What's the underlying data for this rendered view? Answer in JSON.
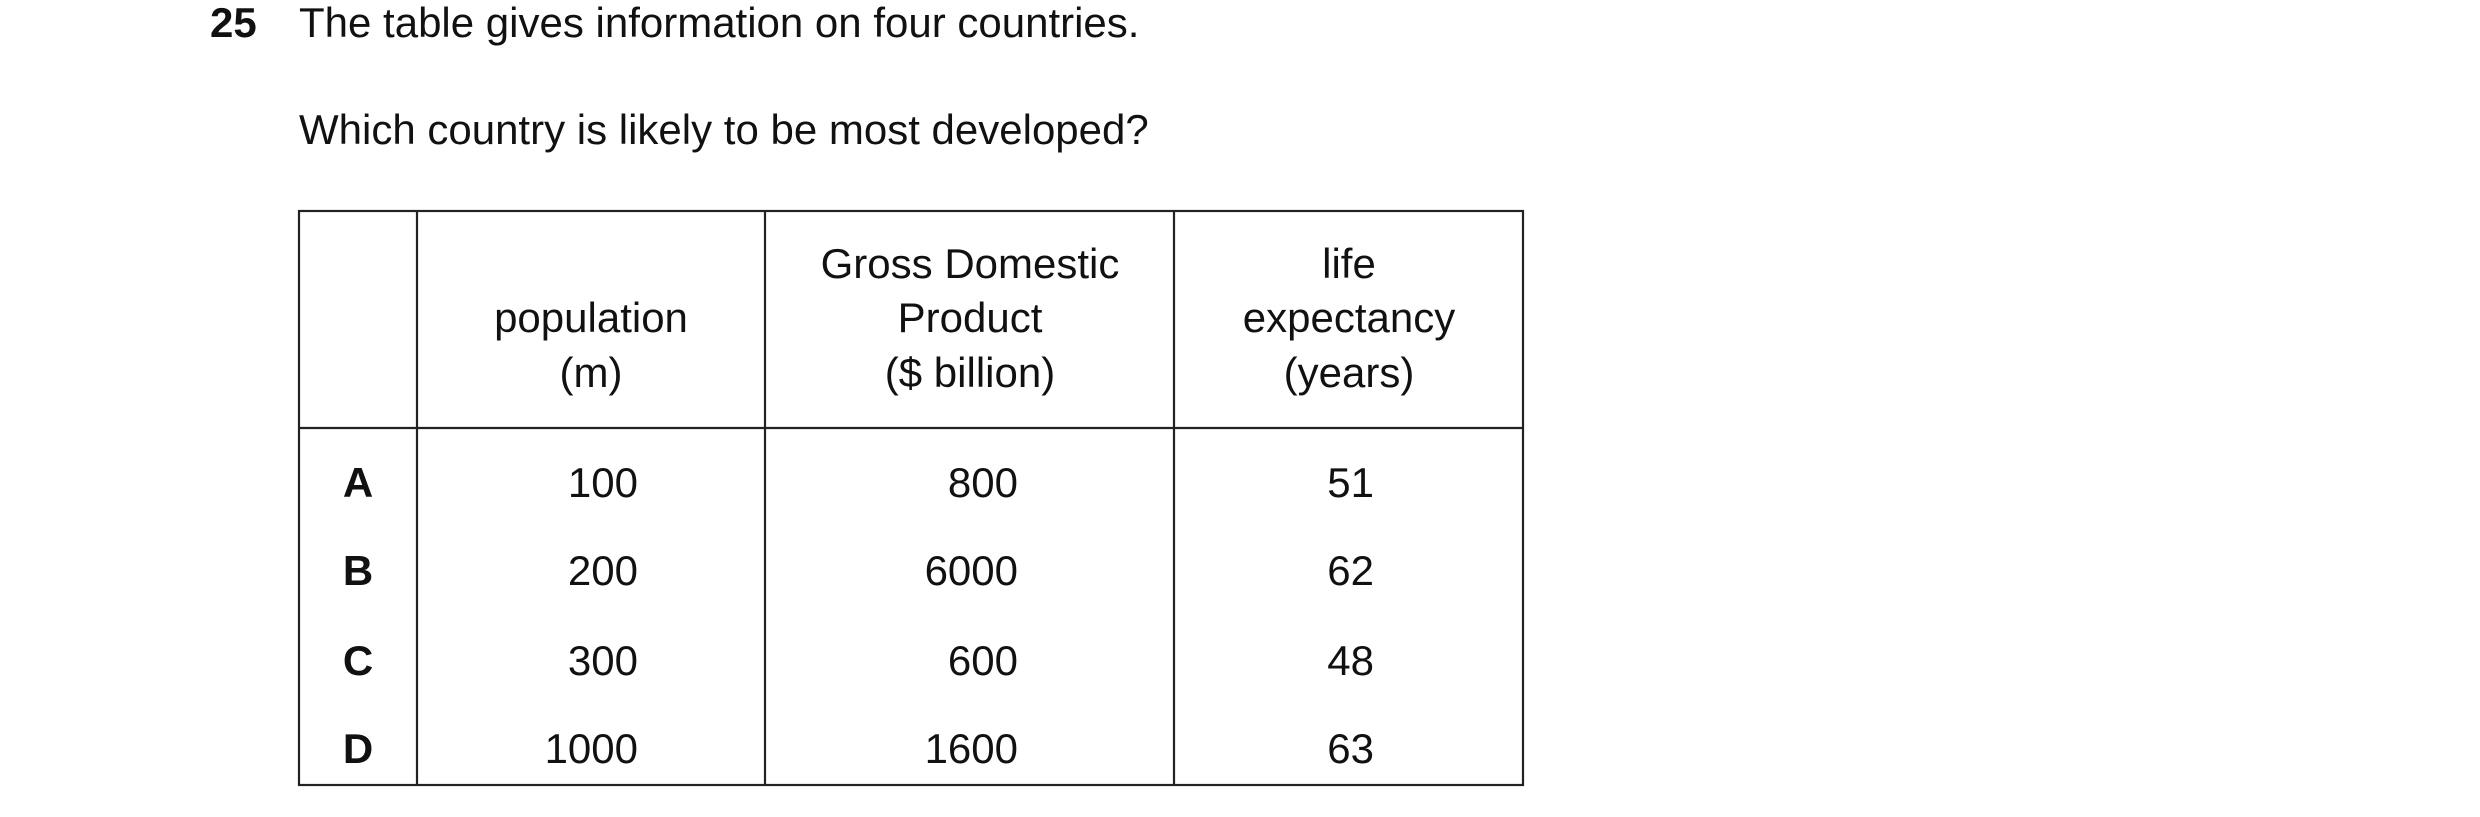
{
  "question": {
    "number": "25",
    "lines": [
      "The table gives information on four countries.",
      "Which country is likely to be most developed?"
    ]
  },
  "table": {
    "headers": [
      [
        "population",
        "(m)"
      ],
      [
        "Gross Domestic",
        "Product",
        "($ billion)"
      ],
      [
        "life",
        "expectancy",
        "(years)"
      ]
    ],
    "rows": [
      [
        "A",
        100,
        800,
        51
      ],
      [
        "B",
        200,
        6000,
        62
      ],
      [
        "C",
        300,
        600,
        48
      ],
      [
        "D",
        1000,
        1600,
        63
      ]
    ]
  }
}
